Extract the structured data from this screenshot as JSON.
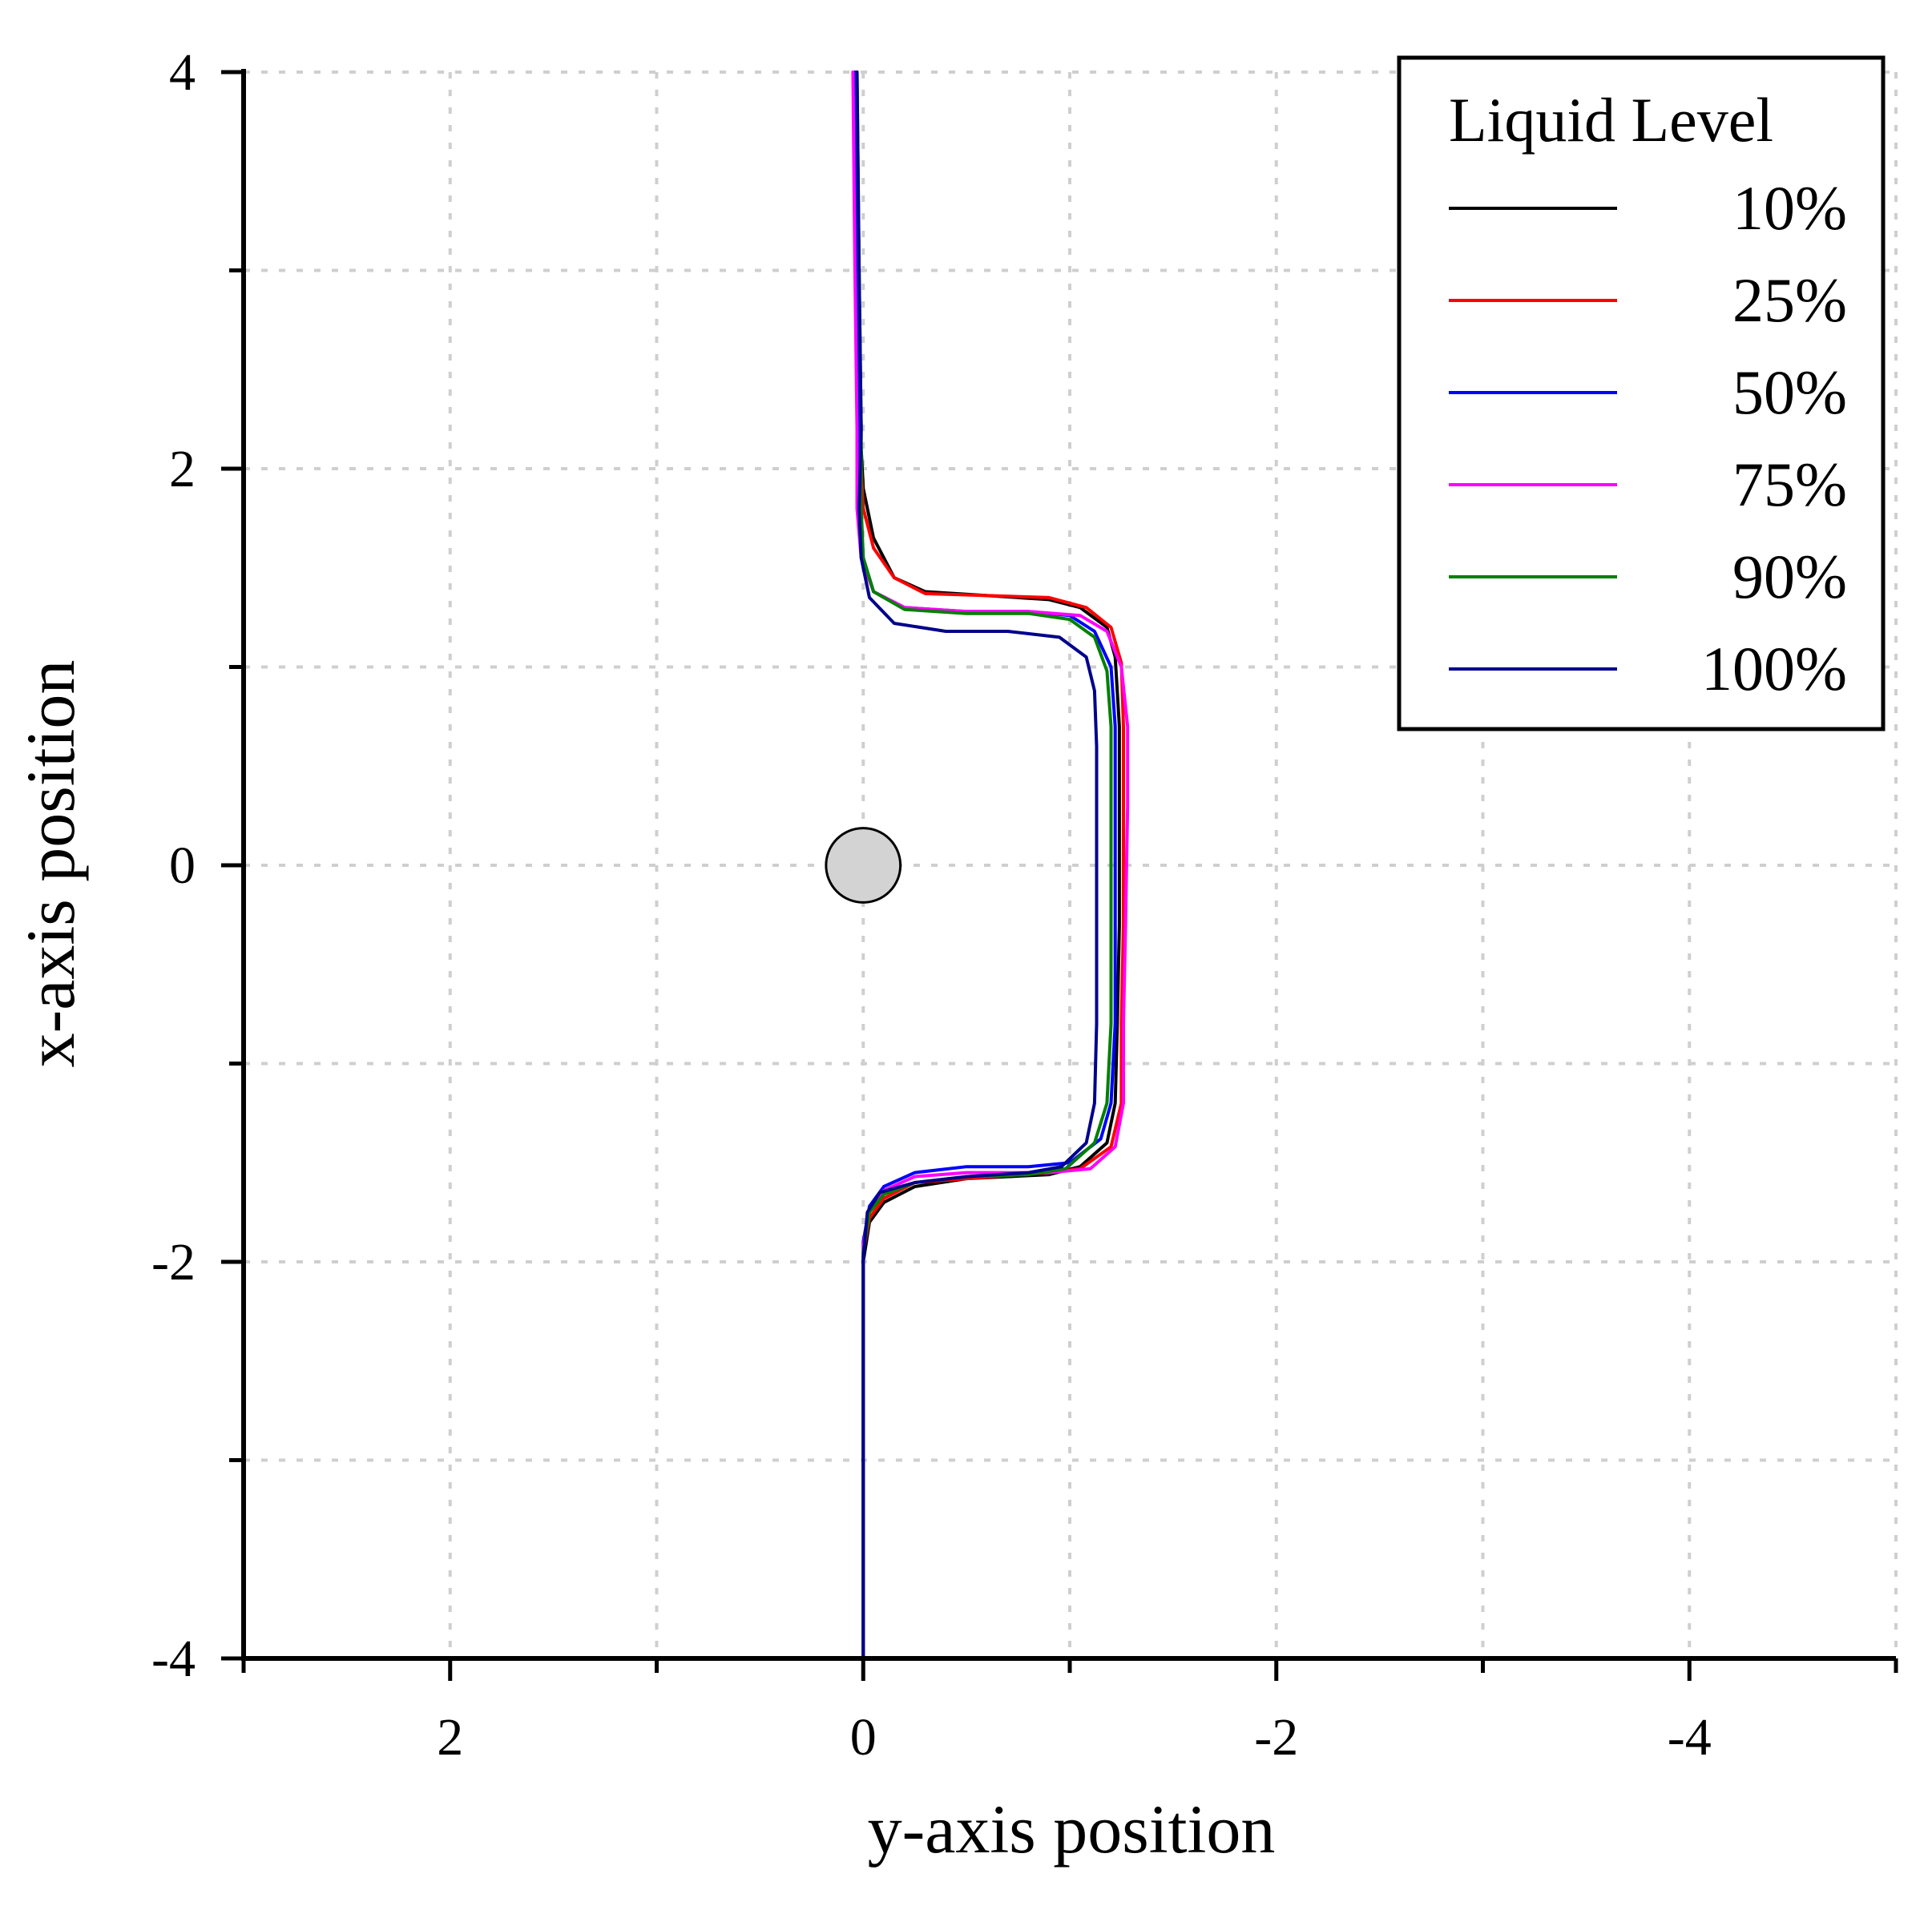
{
  "chart_data": {
    "type": "line",
    "title": "",
    "xlabel": "y-axis position",
    "ylabel": "x-axis position",
    "xlim": [
      3,
      -5
    ],
    "ylim": [
      -4,
      4
    ],
    "x_inverted": true,
    "x_ticks": [
      2,
      0,
      -2,
      -4
    ],
    "x_tick_labels": [
      "2",
      "0",
      "-2",
      "-4"
    ],
    "x_minor_ticks": [
      3,
      1,
      -1,
      -3,
      -5
    ],
    "y_ticks": [
      -4,
      -2,
      0,
      2,
      4
    ],
    "y_tick_labels": [
      "-4",
      "-2",
      "0",
      "2",
      "4"
    ],
    "y_minor_ticks": [
      -3,
      -1,
      1,
      3
    ],
    "grid": true,
    "legend": {
      "title": "Liquid Level",
      "placement": "top-right"
    },
    "obstacle": {
      "x": 0,
      "y": 0,
      "radius": 0.18,
      "color": "#d3d3d3"
    },
    "series": [
      {
        "name": "10%",
        "color": "#000000",
        "points": [
          [
            0.03,
            4
          ],
          [
            0.03,
            3
          ],
          [
            0.02,
            2.3
          ],
          [
            0,
            1.9
          ],
          [
            -0.05,
            1.65
          ],
          [
            -0.15,
            1.45
          ],
          [
            -0.3,
            1.38
          ],
          [
            -0.6,
            1.36
          ],
          [
            -0.9,
            1.34
          ],
          [
            -1.05,
            1.3
          ],
          [
            -1.18,
            1.2
          ],
          [
            -1.22,
            1.05
          ],
          [
            -1.24,
            0.7
          ],
          [
            -1.24,
            0.3
          ],
          [
            -1.24,
            -0.3
          ],
          [
            -1.23,
            -0.8
          ],
          [
            -1.22,
            -1.2
          ],
          [
            -1.18,
            -1.4
          ],
          [
            -1.05,
            -1.52
          ],
          [
            -0.9,
            -1.56
          ],
          [
            -0.5,
            -1.58
          ],
          [
            -0.25,
            -1.62
          ],
          [
            -0.1,
            -1.7
          ],
          [
            -0.03,
            -1.8
          ],
          [
            0,
            -2
          ],
          [
            0,
            -3
          ],
          [
            0,
            -4
          ]
        ]
      },
      {
        "name": "25%",
        "color": "#ff0000",
        "points": [
          [
            0.04,
            4
          ],
          [
            0.03,
            3
          ],
          [
            0.02,
            2.2
          ],
          [
            0,
            1.8
          ],
          [
            -0.05,
            1.6
          ],
          [
            -0.15,
            1.45
          ],
          [
            -0.3,
            1.37
          ],
          [
            -0.6,
            1.36
          ],
          [
            -0.9,
            1.35
          ],
          [
            -1.08,
            1.3
          ],
          [
            -1.2,
            1.2
          ],
          [
            -1.25,
            1.02
          ],
          [
            -1.26,
            0.7
          ],
          [
            -1.26,
            0.3
          ],
          [
            -1.26,
            -0.3
          ],
          [
            -1.25,
            -0.8
          ],
          [
            -1.25,
            -1.2
          ],
          [
            -1.2,
            -1.42
          ],
          [
            -1.05,
            -1.53
          ],
          [
            -0.9,
            -1.55
          ],
          [
            -0.5,
            -1.58
          ],
          [
            -0.25,
            -1.6
          ],
          [
            -0.1,
            -1.68
          ],
          [
            -0.03,
            -1.78
          ],
          [
            0,
            -1.95
          ],
          [
            0,
            -3
          ],
          [
            0,
            -4
          ]
        ]
      },
      {
        "name": "50%",
        "color": "#0000ff",
        "points": [
          [
            0.04,
            4
          ],
          [
            0.03,
            3
          ],
          [
            0.02,
            2.2
          ],
          [
            0.02,
            1.8
          ],
          [
            0,
            1.55
          ],
          [
            -0.05,
            1.38
          ],
          [
            -0.2,
            1.3
          ],
          [
            -0.5,
            1.28
          ],
          [
            -0.8,
            1.28
          ],
          [
            -1.0,
            1.26
          ],
          [
            -1.12,
            1.18
          ],
          [
            -1.2,
            1.0
          ],
          [
            -1.22,
            0.7
          ],
          [
            -1.22,
            0.3
          ],
          [
            -1.22,
            -0.3
          ],
          [
            -1.22,
            -0.8
          ],
          [
            -1.2,
            -1.2
          ],
          [
            -1.15,
            -1.38
          ],
          [
            -1.0,
            -1.5
          ],
          [
            -0.8,
            -1.52
          ],
          [
            -0.5,
            -1.52
          ],
          [
            -0.25,
            -1.55
          ],
          [
            -0.1,
            -1.62
          ],
          [
            -0.03,
            -1.72
          ],
          [
            0,
            -1.9
          ],
          [
            0,
            -3
          ],
          [
            0,
            -4
          ]
        ]
      },
      {
        "name": "75%",
        "color": "#ff00ff",
        "points": [
          [
            0.05,
            4
          ],
          [
            0.04,
            3
          ],
          [
            0.03,
            2.2
          ],
          [
            0.03,
            1.8
          ],
          [
            0.01,
            1.55
          ],
          [
            -0.05,
            1.38
          ],
          [
            -0.2,
            1.3
          ],
          [
            -0.5,
            1.28
          ],
          [
            -0.8,
            1.28
          ],
          [
            -1.05,
            1.26
          ],
          [
            -1.18,
            1.18
          ],
          [
            -1.25,
            1.0
          ],
          [
            -1.28,
            0.7
          ],
          [
            -1.28,
            0.3
          ],
          [
            -1.27,
            -0.3
          ],
          [
            -1.26,
            -0.8
          ],
          [
            -1.26,
            -1.2
          ],
          [
            -1.22,
            -1.42
          ],
          [
            -1.1,
            -1.53
          ],
          [
            -0.9,
            -1.55
          ],
          [
            -0.5,
            -1.55
          ],
          [
            -0.25,
            -1.57
          ],
          [
            -0.1,
            -1.64
          ],
          [
            -0.03,
            -1.74
          ],
          [
            0,
            -1.92
          ],
          [
            0,
            -3
          ],
          [
            0,
            -4
          ]
        ]
      },
      {
        "name": "90%",
        "color": "#008000",
        "points": [
          [
            0.03,
            4
          ],
          [
            0.02,
            3
          ],
          [
            0.01,
            2.2
          ],
          [
            0.01,
            1.8
          ],
          [
            0,
            1.55
          ],
          [
            -0.05,
            1.38
          ],
          [
            -0.2,
            1.29
          ],
          [
            -0.5,
            1.27
          ],
          [
            -0.8,
            1.27
          ],
          [
            -1.0,
            1.24
          ],
          [
            -1.12,
            1.15
          ],
          [
            -1.18,
            0.98
          ],
          [
            -1.2,
            0.7
          ],
          [
            -1.2,
            0.3
          ],
          [
            -1.2,
            -0.3
          ],
          [
            -1.2,
            -0.8
          ],
          [
            -1.18,
            -1.2
          ],
          [
            -1.12,
            -1.4
          ],
          [
            -0.98,
            -1.53
          ],
          [
            -0.8,
            -1.56
          ],
          [
            -0.5,
            -1.57
          ],
          [
            -0.25,
            -1.6
          ],
          [
            -0.1,
            -1.66
          ],
          [
            -0.03,
            -1.75
          ],
          [
            0,
            -1.95
          ],
          [
            0,
            -3
          ],
          [
            0,
            -4
          ]
        ]
      },
      {
        "name": "100%",
        "color": "#00008b",
        "points": [
          [
            0.03,
            4
          ],
          [
            0.02,
            3
          ],
          [
            0.01,
            2.2
          ],
          [
            0.02,
            1.8
          ],
          [
            0.01,
            1.55
          ],
          [
            -0.03,
            1.35
          ],
          [
            -0.15,
            1.22
          ],
          [
            -0.4,
            1.18
          ],
          [
            -0.7,
            1.18
          ],
          [
            -0.95,
            1.15
          ],
          [
            -1.08,
            1.05
          ],
          [
            -1.12,
            0.88
          ],
          [
            -1.13,
            0.6
          ],
          [
            -1.13,
            0.2
          ],
          [
            -1.13,
            -0.3
          ],
          [
            -1.13,
            -0.8
          ],
          [
            -1.12,
            -1.2
          ],
          [
            -1.08,
            -1.4
          ],
          [
            -0.96,
            -1.52
          ],
          [
            -0.8,
            -1.55
          ],
          [
            -0.5,
            -1.57
          ],
          [
            -0.25,
            -1.6
          ],
          [
            -0.08,
            -1.65
          ],
          [
            -0.02,
            -1.75
          ],
          [
            0,
            -1.98
          ],
          [
            0,
            -3
          ],
          [
            0,
            -4
          ]
        ]
      }
    ]
  }
}
